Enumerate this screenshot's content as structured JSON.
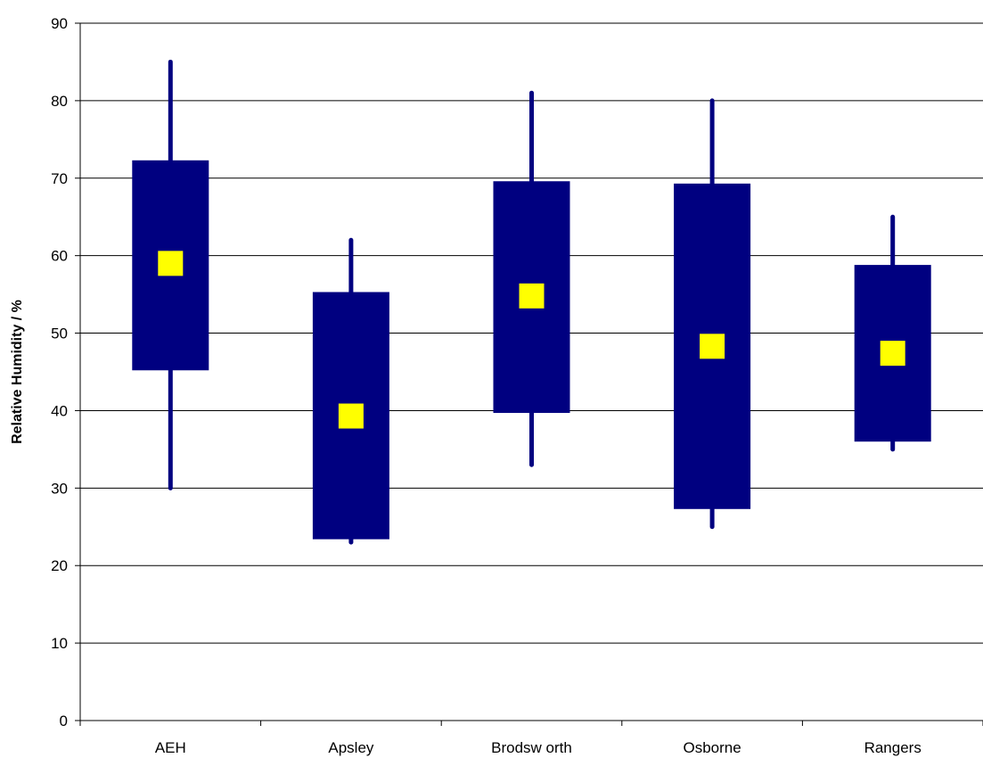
{
  "chart_data": {
    "type": "box",
    "title": "",
    "xlabel": "",
    "ylabel": "Relative Humidity / %",
    "ylim": [
      0,
      90
    ],
    "yticks": [
      0,
      10,
      20,
      30,
      40,
      50,
      60,
      70,
      80,
      90
    ],
    "ytick_labels": [
      "0",
      "10",
      "20",
      "30",
      "40",
      "50",
      "60",
      "70",
      "80",
      "90"
    ],
    "grid": "horizontal",
    "categories": [
      "AEH",
      "Apsley",
      "Brodsw orth",
      "Osborne",
      "Rangers"
    ],
    "series": [
      {
        "category": "AEH",
        "min": 30,
        "q1": 45.2,
        "median": 59,
        "q3": 72.3,
        "max": 85
      },
      {
        "category": "Apsley",
        "min": 23,
        "q1": 23.4,
        "median": 39.3,
        "q3": 55.3,
        "max": 62
      },
      {
        "category": "Brodsw orth",
        "min": 33,
        "q1": 39.7,
        "median": 54.8,
        "q3": 69.6,
        "max": 81
      },
      {
        "category": "Osborne",
        "min": 25,
        "q1": 27.3,
        "median": 48.3,
        "q3": 69.3,
        "max": 80
      },
      {
        "category": "Rangers",
        "min": 35,
        "q1": 36,
        "median": 47.4,
        "q3": 58.8,
        "max": 65
      }
    ],
    "colors": {
      "box": "#000080",
      "whisker": "#000080",
      "median_marker": "#ffff00",
      "grid": "#000000"
    }
  }
}
